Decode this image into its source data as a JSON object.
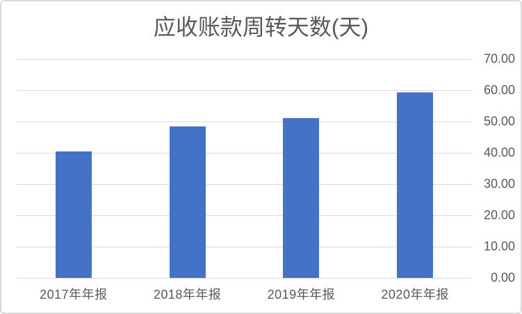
{
  "chart_data": {
    "type": "bar",
    "title": "应收账款周转天数(天)",
    "categories": [
      "2017年年报",
      "2018年年报",
      "2019年年报",
      "2020年年报"
    ],
    "values": [
      40.4,
      48.4,
      51.1,
      59.3
    ],
    "ylim": [
      0,
      70
    ],
    "ytick_values": [
      0,
      10,
      20,
      30,
      40,
      50,
      60,
      70
    ],
    "ytick_labels": [
      "0.00",
      "10.00",
      "20.00",
      "30.00",
      "40.00",
      "50.00",
      "60.00",
      "70.00"
    ],
    "yaxis_side": "right",
    "grid": true,
    "legend": "none",
    "colors": {
      "bar": "#4472C4",
      "gridline": "#D9D9D9",
      "axis_text": "#595959",
      "title_text": "#595959",
      "border": "#D9D9D9",
      "background": "#FFFFFF"
    }
  }
}
